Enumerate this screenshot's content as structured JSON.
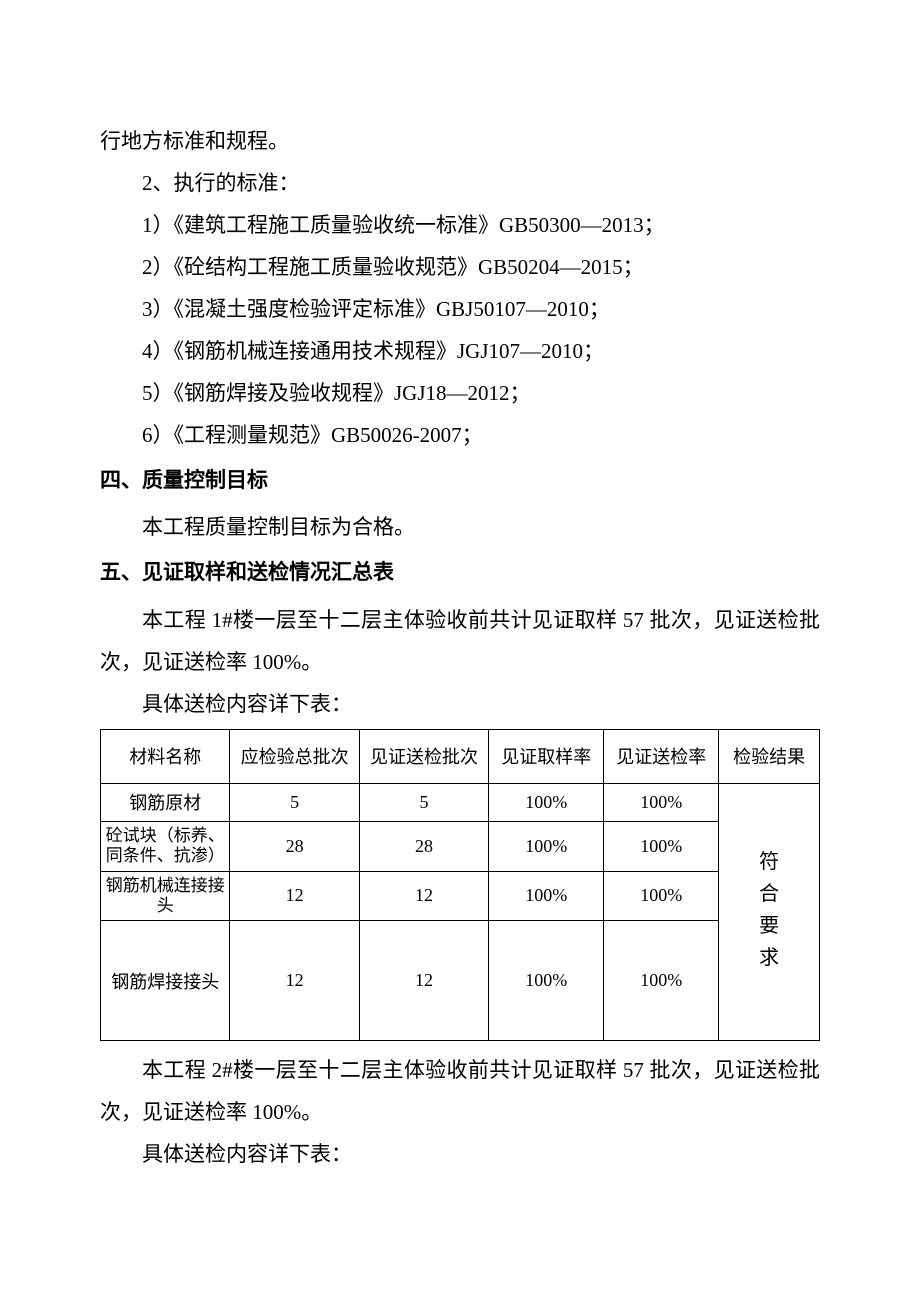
{
  "paragraphs": {
    "p0": "行地方标准和规程。",
    "p1": "2、执行的标准：",
    "p2": "1）《建筑工程施工质量验收统一标准》GB50300—2013；",
    "p3": "2）《砼结构工程施工质量验收规范》GB50204—2015；",
    "p4": "3）《混凝土强度检验评定标准》GBJ50107—2010；",
    "p5": "4）《钢筋机械连接通用技术规程》JGJ107—2010；",
    "p6": "5）《钢筋焊接及验收规程》JGJ18—2012；",
    "p7": "6）《工程测量规范》GB50026-2007；"
  },
  "heading4": "四、质量控制目标",
  "para_h4_1": "本工程质量控制目标为合格。",
  "heading5": "五、见证取样和送检情况汇总表",
  "para_h5_1": "本工程 1#楼一层至十二层主体验收前共计见证取样 57 批次，见证送检批次，见证送检率 100%。",
  "para_h5_2": "具体送检内容详下表：",
  "table1": {
    "headers": [
      "材料名称",
      "应检验总批次",
      "见证送检批次",
      "见证取样率",
      "见证送检率",
      "检验结果"
    ],
    "rows": [
      {
        "name": "钢筋原材",
        "total": "5",
        "sent": "5",
        "sample_rate": "100%",
        "send_rate": "100%"
      },
      {
        "name": "砼试块（标养、同条件、抗渗）",
        "total": "28",
        "sent": "28",
        "sample_rate": "100%",
        "send_rate": "100%"
      },
      {
        "name": "钢筋机械连接接头",
        "total": "12",
        "sent": "12",
        "sample_rate": "100%",
        "send_rate": "100%"
      },
      {
        "name": "钢筋焊接接头",
        "total": "12",
        "sent": "12",
        "sample_rate": "100%",
        "send_rate": "100%"
      }
    ],
    "result": "符合要求",
    "col_widths": [
      "18%",
      "18%",
      "18%",
      "16%",
      "16%",
      "14%"
    ]
  },
  "para_h5_3": "本工程 2#楼一层至十二层主体验收前共计见证取样 57 批次，见证送检批次，见证送检率 100%。",
  "para_h5_4": "具体送检内容详下表："
}
